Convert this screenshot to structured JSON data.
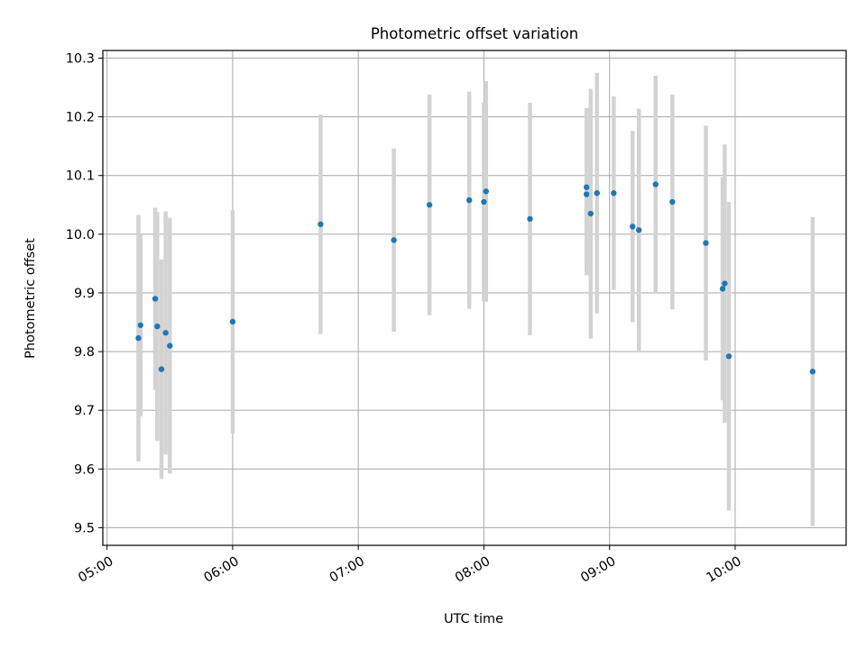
{
  "chart_data": {
    "type": "scatter",
    "title": "Photometric offset variation",
    "xlabel": "UTC time",
    "ylabel": "Photometric offset",
    "x_tick_labels": [
      "05:00",
      "06:00",
      "07:00",
      "08:00",
      "09:00",
      "10:00"
    ],
    "x_tick_values": [
      "05:00",
      "06:00",
      "07:00",
      "08:00",
      "09:00",
      "10:00"
    ],
    "xlim": [
      "04:58",
      "10:53"
    ],
    "y_ticks": [
      "9.5",
      "9.6",
      "9.7",
      "9.8",
      "9.9",
      "10.0",
      "10.1",
      "10.2",
      "10.3"
    ],
    "ylim": [
      9.47,
      10.313
    ],
    "grid": true,
    "colors": {
      "point": "#1f77b4",
      "errorbar": "#d3d3d3",
      "grid": "#b0b0b0"
    },
    "points": [
      {
        "t": "05:15",
        "y": 9.823,
        "err": 0.21
      },
      {
        "t": "05:16",
        "y": 9.845,
        "err": 0.155
      },
      {
        "t": "05:23",
        "y": 9.89,
        "err": 0.155
      },
      {
        "t": "05:24",
        "y": 9.843,
        "err": 0.195
      },
      {
        "t": "05:26",
        "y": 9.77,
        "err": 0.187
      },
      {
        "t": "05:28",
        "y": 9.832,
        "err": 0.207
      },
      {
        "t": "05:30",
        "y": 9.81,
        "err": 0.218
      },
      {
        "t": "06:00",
        "y": 9.851,
        "err": 0.19
      },
      {
        "t": "06:42",
        "y": 10.017,
        "err": 0.187
      },
      {
        "t": "07:17",
        "y": 9.99,
        "err": 0.156
      },
      {
        "t": "07:34",
        "y": 10.05,
        "err": 0.188
      },
      {
        "t": "07:53",
        "y": 10.058,
        "err": 0.185
      },
      {
        "t": "08:00",
        "y": 10.055,
        "err": 0.17
      },
      {
        "t": "08:01",
        "y": 10.073,
        "err": 0.188
      },
      {
        "t": "08:22",
        "y": 10.026,
        "err": 0.198
      },
      {
        "t": "08:49",
        "y": 10.08,
        "err": 0.135
      },
      {
        "t": "08:49",
        "y": 10.068,
        "err": 0.138
      },
      {
        "t": "08:51",
        "y": 10.035,
        "err": 0.213
      },
      {
        "t": "08:54",
        "y": 10.07,
        "err": 0.205
      },
      {
        "t": "09:02",
        "y": 10.07,
        "err": 0.165
      },
      {
        "t": "09:11",
        "y": 10.013,
        "err": 0.163
      },
      {
        "t": "09:14",
        "y": 10.007,
        "err": 0.207
      },
      {
        "t": "09:22",
        "y": 10.085,
        "err": 0.185
      },
      {
        "t": "09:30",
        "y": 10.055,
        "err": 0.183
      },
      {
        "t": "09:46",
        "y": 9.985,
        "err": 0.2
      },
      {
        "t": "09:54",
        "y": 9.907,
        "err": 0.19
      },
      {
        "t": "09:55",
        "y": 9.916,
        "err": 0.237
      },
      {
        "t": "09:57",
        "y": 9.792,
        "err": 0.263
      },
      {
        "t": "10:37",
        "y": 9.766,
        "err": 0.263
      }
    ]
  }
}
